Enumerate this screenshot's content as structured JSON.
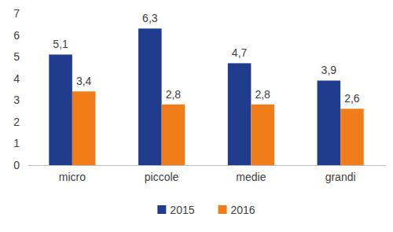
{
  "chart_data": {
    "type": "bar",
    "categories": [
      "micro",
      "piccole",
      "medie",
      "grandi"
    ],
    "series": [
      {
        "name": "2015",
        "color": "#1f3d8c",
        "values": [
          5.1,
          6.3,
          4.7,
          3.9
        ],
        "value_labels": [
          "5,1",
          "6,3",
          "4,7",
          "3,9"
        ]
      },
      {
        "name": "2016",
        "color": "#f07d1a",
        "values": [
          3.4,
          2.8,
          2.8,
          2.6
        ],
        "value_labels": [
          "3,4",
          "2,8",
          "2,8",
          "2,6"
        ]
      }
    ],
    "ylim": [
      0,
      7
    ],
    "yticks": [
      0,
      1,
      2,
      3,
      4,
      5,
      6,
      7
    ],
    "grid": false,
    "data_labels": true,
    "legend": "bottom"
  }
}
